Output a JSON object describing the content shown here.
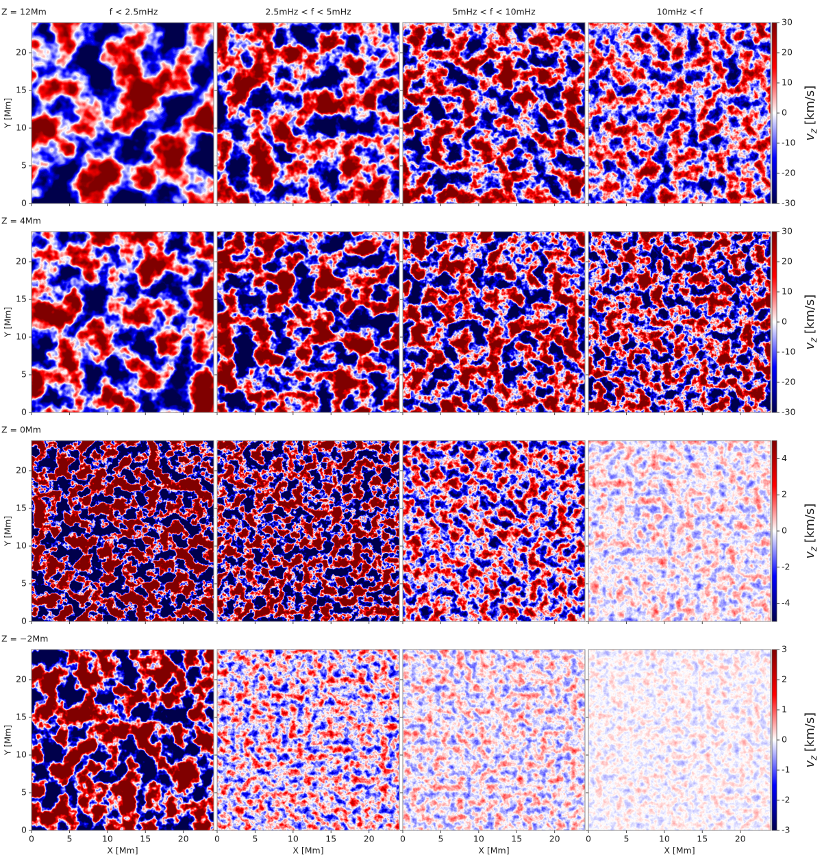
{
  "chart_data": {
    "type": "heatmap",
    "columns": [
      "f < 2.5mHz",
      "2.5mHz < f < 5mHz",
      "5mHz < f < 10mHz",
      "10mHz < f"
    ],
    "rows": [
      {
        "label": "Z = 12Mm",
        "clim": [
          -30,
          30
        ],
        "cticks": [
          -30,
          -20,
          -10,
          0,
          10,
          20,
          30
        ]
      },
      {
        "label": "Z = 4Mm",
        "clim": [
          -30,
          30
        ],
        "cticks": [
          -30,
          -20,
          -10,
          0,
          10,
          20,
          30
        ]
      },
      {
        "label": "Z = 0Mm",
        "clim": [
          -5,
          5
        ],
        "cticks": [
          -4,
          -2,
          0,
          2,
          4
        ]
      },
      {
        "label": "Z = −2Mm",
        "clim": [
          -3,
          3
        ],
        "cticks": [
          -3,
          -2,
          -1,
          0,
          1,
          2,
          3
        ]
      }
    ],
    "colorbar_label": {
      "symbol": "v",
      "subscript": "z",
      "unit": "[km/s]"
    },
    "xlabel": "X [Mm]",
    "ylabel": "Y [Mm]",
    "xlim": [
      0,
      24
    ],
    "ylim": [
      0,
      24
    ],
    "xticks": [
      0,
      5,
      10,
      15,
      20
    ],
    "yticks": [
      0,
      5,
      10,
      15,
      20
    ],
    "colormap": [
      "#00004c",
      "#0000ff",
      "#ffffff",
      "#ff0000",
      "#800000"
    ]
  }
}
